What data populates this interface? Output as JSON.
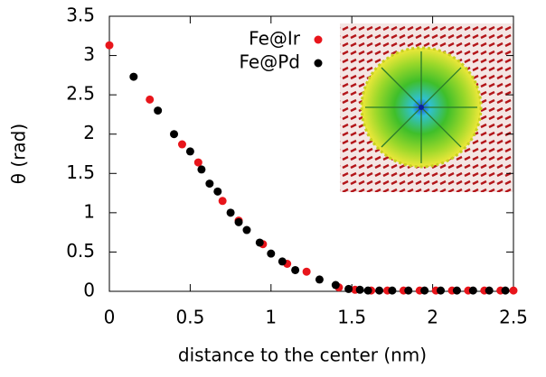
{
  "chart_data": {
    "type": "scatter",
    "xlabel": "distance to the center (nm)",
    "ylabel": "θ (rad)",
    "xlim": [
      0,
      2.5
    ],
    "ylim": [
      0,
      3.5
    ],
    "xticks": [
      0,
      0.5,
      1,
      1.5,
      2,
      2.5
    ],
    "yticks": [
      0,
      0.5,
      1,
      1.5,
      2,
      2.5,
      3,
      3.5
    ],
    "legend": "top-right",
    "series": [
      {
        "name": "Fe@Ir",
        "color": "#e8151b",
        "x": [
          0,
          0.25,
          0.45,
          0.55,
          0.7,
          0.8,
          0.95,
          1.1,
          1.22,
          1.42,
          1.52,
          1.62,
          1.72,
          1.82,
          1.92,
          2.02,
          2.12,
          2.22,
          2.32,
          2.42,
          2.5
        ],
        "values": [
          3.13,
          2.44,
          1.87,
          1.64,
          1.15,
          0.9,
          0.6,
          0.35,
          0.25,
          0.05,
          0.02,
          0.01,
          0.01,
          0.01,
          0.01,
          0.01,
          0.01,
          0.01,
          0.01,
          0.01,
          0.01
        ]
      },
      {
        "name": "Fe@Pd",
        "color": "#000000",
        "x": [
          0.15,
          0.3,
          0.4,
          0.5,
          0.57,
          0.62,
          0.67,
          0.75,
          0.8,
          0.85,
          0.93,
          1.0,
          1.07,
          1.15,
          1.3,
          1.4,
          1.48,
          1.55,
          1.6,
          1.67,
          1.75,
          1.85,
          1.95,
          2.05,
          2.15,
          2.25,
          2.35,
          2.45
        ],
        "values": [
          2.73,
          2.3,
          2.0,
          1.78,
          1.55,
          1.37,
          1.27,
          1.0,
          0.88,
          0.78,
          0.62,
          0.48,
          0.38,
          0.27,
          0.15,
          0.08,
          0.03,
          0.02,
          0.01,
          0.01,
          0.01,
          0.01,
          0.01,
          0.01,
          0.01,
          0.01,
          0.01,
          0.01
        ]
      }
    ]
  }
}
